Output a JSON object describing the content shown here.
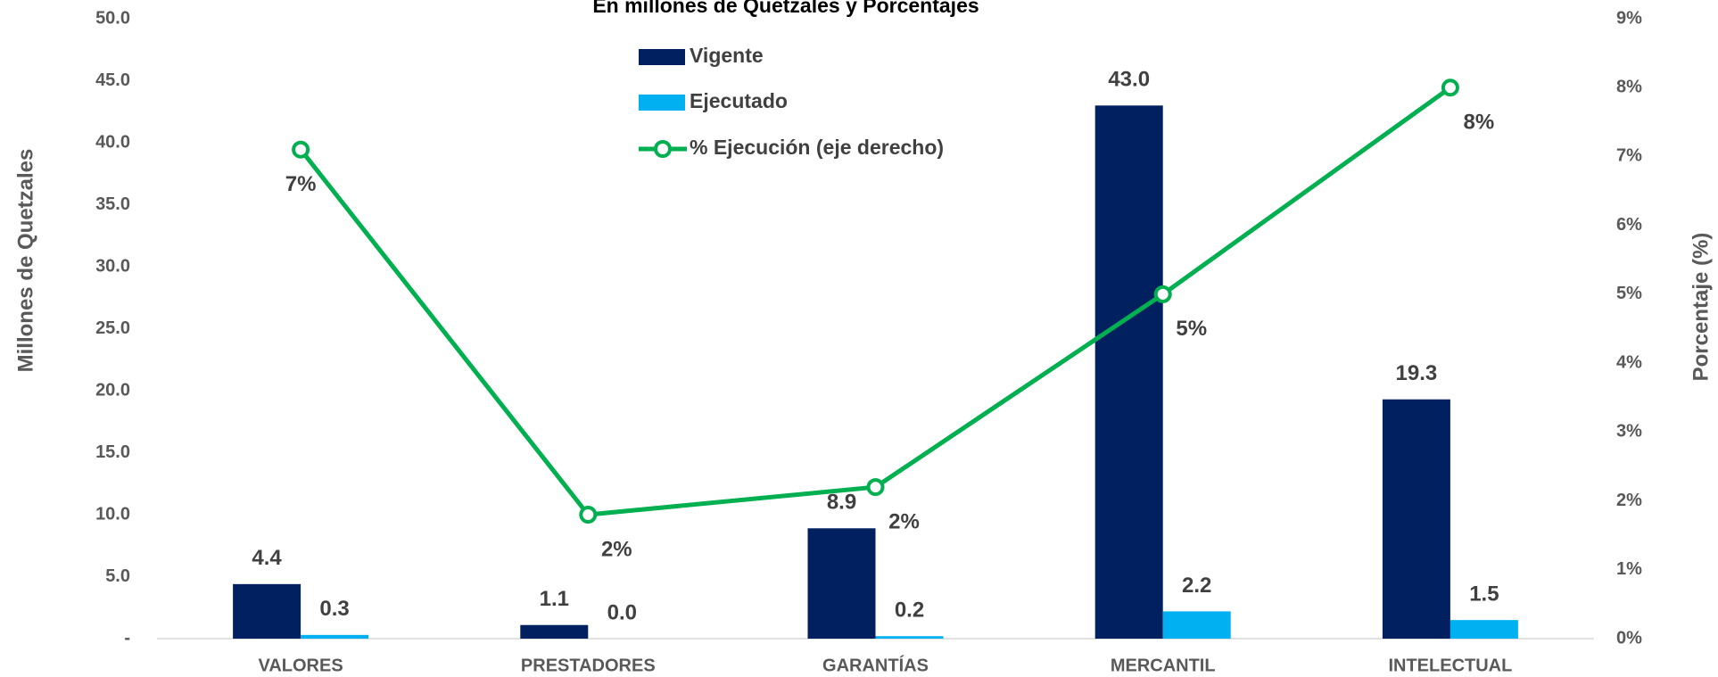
{
  "chart_data": {
    "type": "bar",
    "title": "En millones de Quetzales y Porcentajes",
    "y_label": "Millones de Quetzales",
    "y2_label": "Porcentaje (%)",
    "categories": [
      "VALORES",
      "PRESTADORES",
      "GARANTÍAS",
      "MERCANTIL",
      "INTELECTUAL"
    ],
    "series": [
      {
        "name": "Vigente",
        "type": "bar",
        "color": "#002060",
        "values": [
          4.4,
          1.1,
          8.9,
          43.0,
          19.3
        ],
        "value_labels": [
          "4.4",
          "1.1",
          "8.9",
          "43.0",
          "19.3"
        ]
      },
      {
        "name": "Ejecutado",
        "type": "bar",
        "color": "#00b0f0",
        "values": [
          0.3,
          0.0,
          0.2,
          2.2,
          1.5
        ],
        "value_labels": [
          "0.3",
          "0.0",
          "0.2",
          "2.2",
          "1.5"
        ]
      },
      {
        "name": "% Ejecución (eje derecho)",
        "type": "line",
        "axis": "y2",
        "color": "#00b050",
        "values": [
          7.1,
          1.8,
          2.2,
          5.0,
          8.0
        ],
        "value_labels": [
          "7%",
          "2%",
          "2%",
          "5%",
          "8%"
        ]
      }
    ],
    "ylim": [
      0,
      50
    ],
    "yticks": [
      {
        "value": 0,
        "label": "-"
      },
      {
        "value": 5,
        "label": "5.0"
      },
      {
        "value": 10,
        "label": "10.0"
      },
      {
        "value": 15,
        "label": "15.0"
      },
      {
        "value": 20,
        "label": "20.0"
      },
      {
        "value": 25,
        "label": "25.0"
      },
      {
        "value": 30,
        "label": "30.0"
      },
      {
        "value": 35,
        "label": "35.0"
      },
      {
        "value": 40,
        "label": "40.0"
      },
      {
        "value": 45,
        "label": "45.0"
      },
      {
        "value": 50,
        "label": "50.0"
      }
    ],
    "y2lim": [
      0,
      9
    ],
    "y2ticks": [
      {
        "value": 0,
        "label": "0%"
      },
      {
        "value": 1,
        "label": "1%"
      },
      {
        "value": 2,
        "label": "2%"
      },
      {
        "value": 3,
        "label": "3%"
      },
      {
        "value": 4,
        "label": "4%"
      },
      {
        "value": 5,
        "label": "5%"
      },
      {
        "value": 6,
        "label": "6%"
      },
      {
        "value": 7,
        "label": "7%"
      },
      {
        "value": 8,
        "label": "8%"
      },
      {
        "value": 9,
        "label": "9%"
      }
    ],
    "grid": false
  }
}
